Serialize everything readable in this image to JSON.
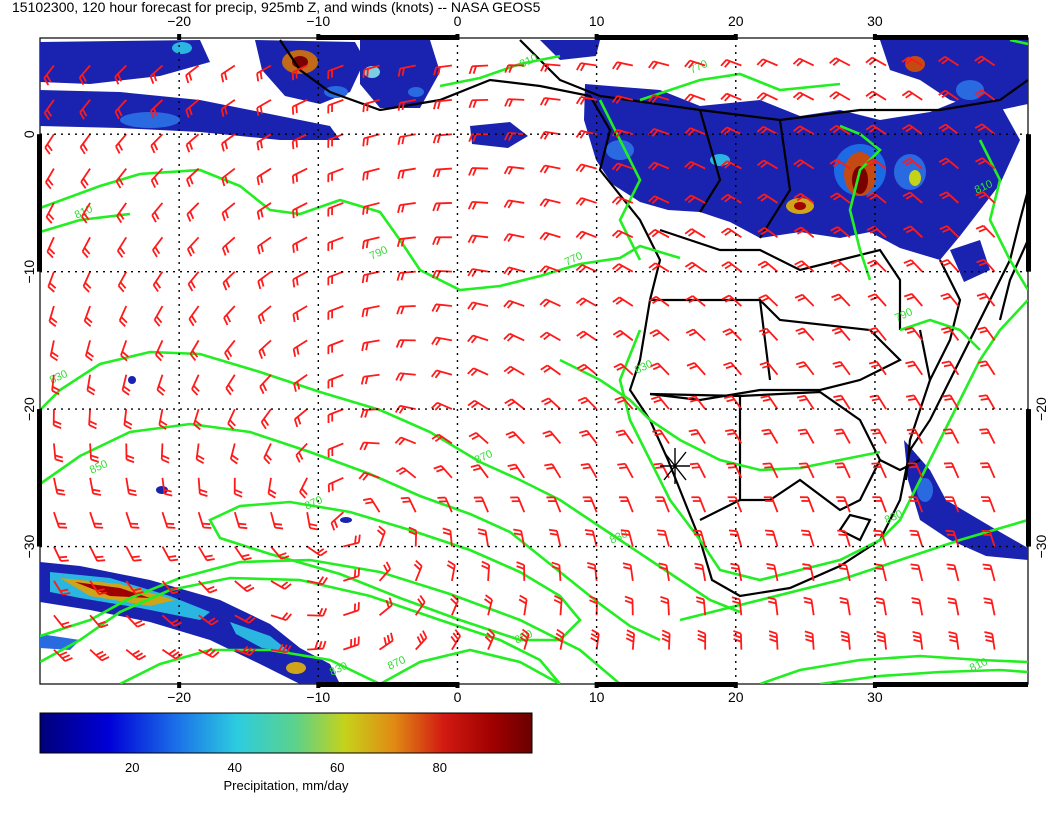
{
  "title": "15102300, 120 hour forecast for precip, 925mb Z, and winds (knots) -- NASA GEOS5",
  "map": {
    "lon_range": [
      -30,
      41
    ],
    "lat_range": [
      -40,
      7
    ],
    "lon_ticks": [
      {
        "value": -20,
        "label": "−20"
      },
      {
        "value": -10,
        "label": "−10"
      },
      {
        "value": 0,
        "label": "0"
      },
      {
        "value": 10,
        "label": "10"
      },
      {
        "value": 20,
        "label": "20"
      },
      {
        "value": 30,
        "label": "30"
      }
    ],
    "lat_ticks": [
      {
        "value": 0,
        "label": "0"
      },
      {
        "value": -10,
        "label": "−10"
      },
      {
        "value": -20,
        "label": "−20"
      },
      {
        "value": -30,
        "label": "−30"
      }
    ],
    "right_lat_ticks": [
      {
        "value": -20,
        "label": "−20"
      },
      {
        "value": -30,
        "label": "−30"
      }
    ],
    "contour_labels": [
      "810",
      "790",
      "770",
      "770",
      "810",
      "810",
      "830",
      "830",
      "850",
      "870",
      "870",
      "830",
      "850",
      "830",
      "810",
      "790",
      "830",
      "870"
    ],
    "colors": {
      "contour": "#22ee22",
      "wind_barb": "#ff1a1a",
      "coastline": "#000000",
      "precip_low": "#1a1aa8",
      "precip_high": "#7a0000"
    }
  },
  "colorbar": {
    "ticks": [
      {
        "value": 20,
        "label": "20"
      },
      {
        "value": 40,
        "label": "40"
      },
      {
        "value": 60,
        "label": "60"
      },
      {
        "value": 80,
        "label": "80"
      }
    ],
    "range": [
      2,
      98
    ],
    "label": "Precipitation, mm/day"
  }
}
